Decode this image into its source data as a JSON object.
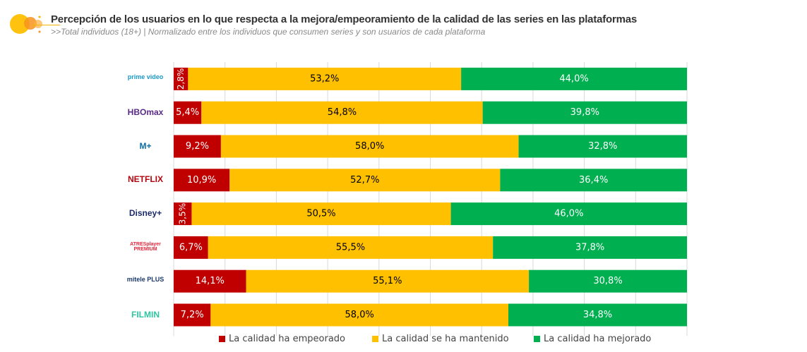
{
  "header": {
    "title": "Percepción de los usuarios en lo que respecta a la mejora/empeoramiento de la calidad de las series en las plataformas",
    "subtitle": ">>Total individuos (18+) | Normalizado entre los individuos que consumen series y son usuarios de cada plataforma"
  },
  "chart_data": {
    "type": "bar",
    "orientation": "horizontal",
    "stacked": true,
    "title": "Percepción de los usuarios en lo que respecta a la mejora/empeoramiento de la calidad de las series en las plataformas",
    "subtitle": ">>Total individuos (18+) | Normalizado entre los individuos que consumen series y son usuarios de cada plataforma",
    "categories": [
      "prime video",
      "HBO max",
      "M+",
      "NETFLIX",
      "Disney+",
      "ATRESplayer PREMIUM",
      "mitele PLUS",
      "FILMIN"
    ],
    "series": [
      {
        "name": "La calidad ha empeorado",
        "color": "#c00000",
        "values": [
          2.8,
          5.4,
          9.2,
          10.9,
          3.5,
          6.7,
          14.1,
          7.2
        ],
        "labels": [
          "2,8%",
          "5,4%",
          "9,2%",
          "10,9%",
          "3,5%",
          "6,7%",
          "14,1%",
          "7,2%"
        ]
      },
      {
        "name": "La calidad se ha mantenido",
        "color": "#ffc000",
        "values": [
          53.2,
          54.8,
          58.0,
          52.7,
          50.5,
          55.5,
          55.1,
          58.0
        ],
        "labels": [
          "53,2%",
          "54,8%",
          "58,0%",
          "52,7%",
          "50,5%",
          "55,5%",
          "55,1%",
          "58,0%"
        ]
      },
      {
        "name": "La calidad ha mejorado",
        "color": "#00b050",
        "values": [
          44.0,
          39.8,
          32.8,
          36.4,
          46.0,
          37.8,
          30.8,
          34.8
        ],
        "labels": [
          "44,0%",
          "39,8%",
          "32,8%",
          "36,4%",
          "46,0%",
          "37,8%",
          "30,8%",
          "34,8%"
        ]
      }
    ],
    "xlim": [
      0,
      100
    ],
    "grid": true,
    "legend": "bottom",
    "xlabel": "",
    "ylabel": ""
  },
  "logos": [
    {
      "text": "prime video",
      "color": "#1a98c8"
    },
    {
      "text": "HBOmax",
      "color": "#5b2a86"
    },
    {
      "text": "M+",
      "color": "#0b6fa4"
    },
    {
      "text": "NETFLIX",
      "color": "#b1060f"
    },
    {
      "text": "Disney+",
      "color": "#1b2a6b"
    },
    {
      "text": "ATRESplayer PREMIUM",
      "color": "#e3263c"
    },
    {
      "text": "mitele PLUS",
      "color": "#1b3a6b"
    },
    {
      "text": "FILMIN",
      "color": "#2ec4a0"
    }
  ]
}
